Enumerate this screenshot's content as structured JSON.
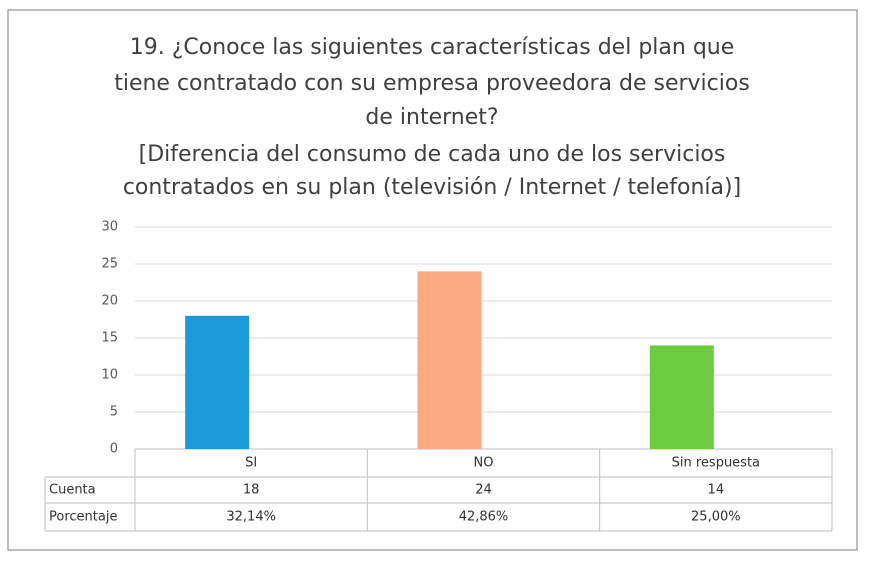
{
  "chart_data": {
    "type": "bar",
    "title": [
      "19. ¿Conoce las siguientes características del plan que",
      "tiene contratado con su empresa proveedora de servicios",
      "de internet?",
      "[Diferencia del consumo de cada uno de los servicios",
      "contratados en su plan (televisión / Internet / telefonía)]"
    ],
    "categories": [
      "SI",
      "NO",
      "Sin respuesta"
    ],
    "values": [
      18,
      24,
      14
    ],
    "colors": [
      "#1a9ad6",
      "#f9aa7e",
      "#6ccb3e"
    ],
    "ylim": [
      0,
      30
    ],
    "yticks": [
      0,
      5,
      10,
      15,
      20,
      25,
      30
    ],
    "grid": true,
    "table": {
      "row_labels": [
        "Cuenta",
        "Porcentaje"
      ],
      "percentages": [
        {
          "value": 32.14,
          "label": "32,14%"
        },
        {
          "value": 42.86,
          "label": "42,86%"
        },
        {
          "value": 25.0,
          "label": "25,00%"
        }
      ]
    }
  }
}
